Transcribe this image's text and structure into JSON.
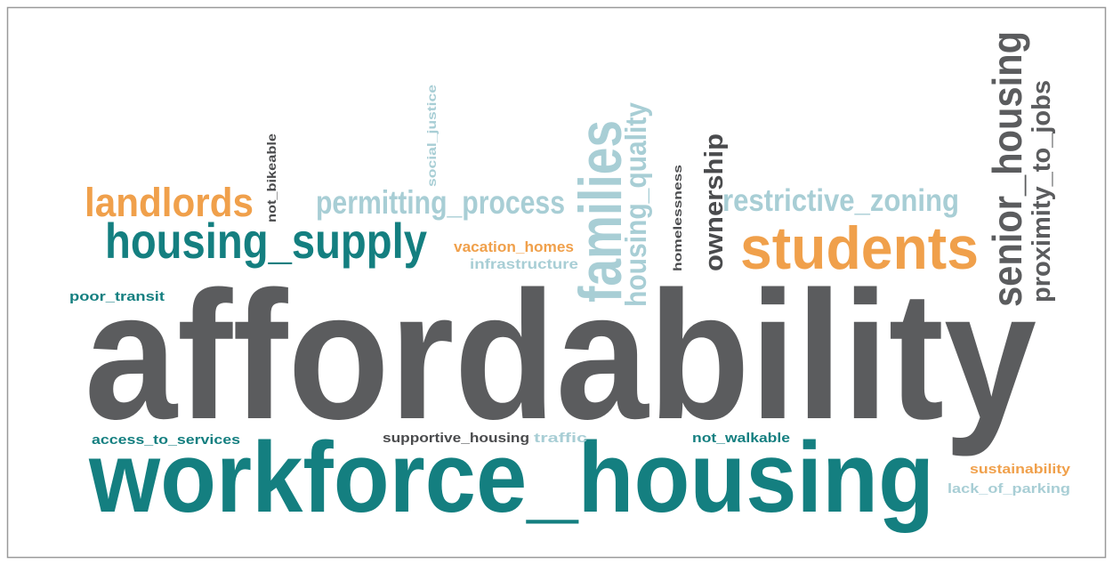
{
  "words": [
    {
      "text": "affordability",
      "color": "#5b5c5e"
    },
    {
      "text": "workforce_housing",
      "color": "#147f80"
    },
    {
      "text": "housing_supply",
      "color": "#147f80"
    },
    {
      "text": "landlords",
      "color": "#f0a04b"
    },
    {
      "text": "permitting_process",
      "color": "#a8ced5"
    },
    {
      "text": "restrictive_zoning",
      "color": "#a8ced5"
    },
    {
      "text": "students",
      "color": "#f0a04b"
    },
    {
      "text": "vacation_homes",
      "color": "#f0a04b"
    },
    {
      "text": "infrastructure",
      "color": "#a8ced5"
    },
    {
      "text": "poor_transit",
      "color": "#147f80"
    },
    {
      "text": "access_to_services",
      "color": "#147f80"
    },
    {
      "text": "supportive_housing",
      "color": "#4a4b4d"
    },
    {
      "text": "traffic",
      "color": "#a8ced5"
    },
    {
      "text": "not_walkable",
      "color": "#147f80"
    },
    {
      "text": "sustainability",
      "color": "#f0a04b"
    },
    {
      "text": "lack_of_parking",
      "color": "#a8ced5"
    },
    {
      "text": "not_bikeable",
      "color": "#4a4b4d"
    },
    {
      "text": "social_justice",
      "color": "#a8ced5"
    },
    {
      "text": "families",
      "color": "#a8ced5"
    },
    {
      "text": "housing_quality",
      "color": "#a8ced5"
    },
    {
      "text": "homelessness",
      "color": "#4a4b4d"
    },
    {
      "text": "ownership",
      "color": "#4a4b4d"
    },
    {
      "text": "senior_housing",
      "color": "#5b5c5e"
    },
    {
      "text": "proximity_to_jobs",
      "color": "#5b5c5e"
    }
  ]
}
